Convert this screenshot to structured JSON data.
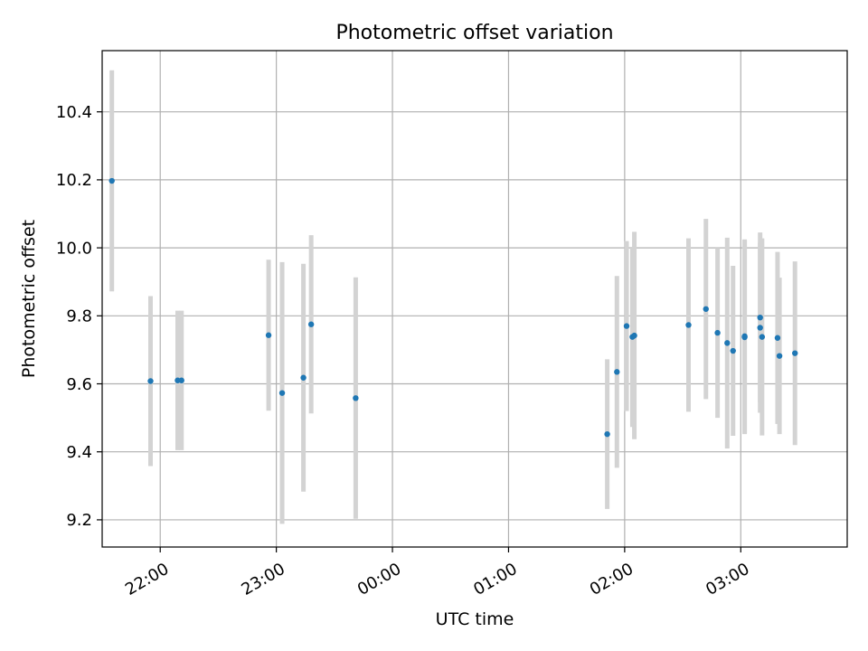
{
  "chart_data": {
    "type": "scatter",
    "title": "Photometric offset variation",
    "xlabel": "UTC time",
    "ylabel": "Photometric offset",
    "grid": true,
    "xlim": [
      "21:30",
      "03:55"
    ],
    "ylim": [
      9.12,
      10.58
    ],
    "xticks": [
      "22:00",
      "23:00",
      "00:00",
      "01:00",
      "02:00",
      "03:00"
    ],
    "yticks": [
      "9.2",
      "9.4",
      "9.6",
      "9.8",
      "10.0",
      "10.2",
      "10.4"
    ],
    "colors": {
      "point": "#1f77b4",
      "errorbar": "#d3d3d3",
      "grid": "#b0b0b0"
    },
    "series": [
      {
        "points": [
          {
            "x": "21:35",
            "y": 10.197,
            "err": 0.325
          },
          {
            "x": "21:55",
            "y": 9.608,
            "err": 0.25
          },
          {
            "x": "22:09",
            "y": 9.61,
            "err": 0.205
          },
          {
            "x": "22:11",
            "y": 9.61,
            "err": 0.205
          },
          {
            "x": "22:56",
            "y": 9.743,
            "err": 0.222
          },
          {
            "x": "23:03",
            "y": 9.573,
            "err": 0.385
          },
          {
            "x": "23:14",
            "y": 9.618,
            "err": 0.335
          },
          {
            "x": "23:18",
            "y": 9.775,
            "err": 0.262
          },
          {
            "x": "23:41",
            "y": 9.558,
            "err": 0.355
          },
          {
            "x": "01:51",
            "y": 9.452,
            "err": 0.22
          },
          {
            "x": "01:56",
            "y": 9.635,
            "err": 0.282
          },
          {
            "x": "02:01",
            "y": 9.77,
            "err": 0.25
          },
          {
            "x": "02:04",
            "y": 9.738,
            "err": 0.265
          },
          {
            "x": "02:05",
            "y": 9.742,
            "err": 0.305
          },
          {
            "x": "02:33",
            "y": 9.773,
            "err": 0.255
          },
          {
            "x": "02:42",
            "y": 9.82,
            "err": 0.265
          },
          {
            "x": "02:48",
            "y": 9.75,
            "err": 0.25
          },
          {
            "x": "02:53",
            "y": 9.72,
            "err": 0.31
          },
          {
            "x": "02:56",
            "y": 9.697,
            "err": 0.25
          },
          {
            "x": "03:02",
            "y": 9.74,
            "err": 0.285
          },
          {
            "x": "03:02",
            "y": 9.737,
            "err": 0.285
          },
          {
            "x": "03:10",
            "y": 9.795,
            "err": 0.25
          },
          {
            "x": "03:10",
            "y": 9.765,
            "err": 0.25
          },
          {
            "x": "03:11",
            "y": 9.738,
            "err": 0.29
          },
          {
            "x": "03:19",
            "y": 9.735,
            "err": 0.253
          },
          {
            "x": "03:20",
            "y": 9.682,
            "err": 0.23
          },
          {
            "x": "03:28",
            "y": 9.69,
            "err": 0.27
          }
        ]
      }
    ]
  }
}
